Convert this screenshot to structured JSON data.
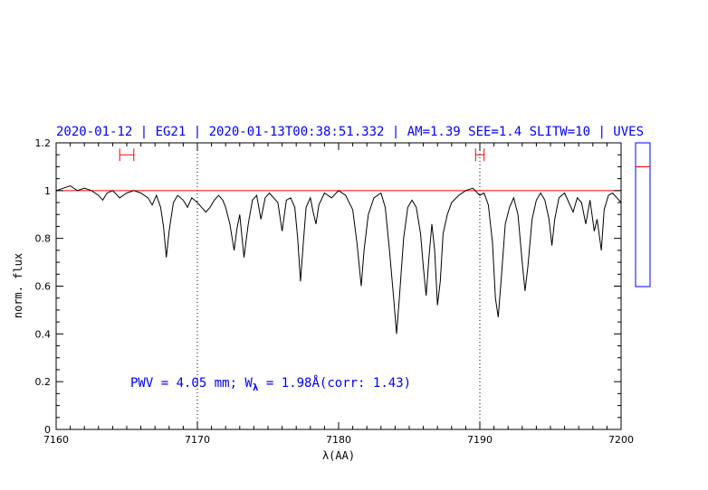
{
  "chart_data": {
    "type": "line",
    "title": "2020-01-12 | EG21 | 2020-01-13T00:38:51.332 | AM=1.39  SEE=1.4  SLITW=10 | UVES",
    "xlabel": "λ(AA)",
    "ylabel": "norm. flux",
    "xlim": [
      7160,
      7200
    ],
    "ylim": [
      0,
      1.2
    ],
    "xticks": [
      7160,
      7170,
      7180,
      7190,
      7200
    ],
    "xtick_labels": [
      "7160",
      "7170",
      "7180",
      "7190",
      "7200"
    ],
    "yticks": [
      0,
      0.2,
      0.4,
      0.6,
      0.8,
      1,
      1.2
    ],
    "ytick_labels": [
      "0",
      "0.2",
      "0.4",
      "0.6",
      "0.8",
      "1",
      "1.2"
    ],
    "reference_line": {
      "y": 1.0,
      "color": "#ff0000"
    },
    "vertical_markers": [
      7170,
      7190
    ],
    "red_intervals": [
      {
        "x0": 7164.5,
        "x1": 7165.5,
        "y": 1.15
      },
      {
        "x0": 7189.7,
        "x1": 7190.3,
        "y": 1.15
      }
    ],
    "annotation": {
      "pwv_text": "PWV  =  4.05  mm;  W",
      "subscript": "λ",
      "ew_text": "  =  1.98Å(corr: 1.43)"
    },
    "series": [
      {
        "color": "#000000",
        "points": [
          [
            7160.0,
            1.0
          ],
          [
            7160.5,
            1.01
          ],
          [
            7161.0,
            1.02
          ],
          [
            7161.5,
            1.0
          ],
          [
            7162.0,
            1.01
          ],
          [
            7162.5,
            1.0
          ],
          [
            7163.0,
            0.98
          ],
          [
            7163.3,
            0.96
          ],
          [
            7163.6,
            0.99
          ],
          [
            7164.0,
            1.0
          ],
          [
            7164.5,
            0.97
          ],
          [
            7165.0,
            0.99
          ],
          [
            7165.5,
            1.0
          ],
          [
            7166.0,
            0.99
          ],
          [
            7166.5,
            0.97
          ],
          [
            7166.8,
            0.94
          ],
          [
            7167.1,
            0.98
          ],
          [
            7167.4,
            0.93
          ],
          [
            7167.6,
            0.85
          ],
          [
            7167.8,
            0.72
          ],
          [
            7168.0,
            0.83
          ],
          [
            7168.3,
            0.95
          ],
          [
            7168.6,
            0.98
          ],
          [
            7169.0,
            0.96
          ],
          [
            7169.3,
            0.93
          ],
          [
            7169.6,
            0.97
          ],
          [
            7170.0,
            0.95
          ],
          [
            7170.3,
            0.93
          ],
          [
            7170.6,
            0.91
          ],
          [
            7170.9,
            0.93
          ],
          [
            7171.2,
            0.96
          ],
          [
            7171.5,
            0.98
          ],
          [
            7171.8,
            0.96
          ],
          [
            7172.0,
            0.93
          ],
          [
            7172.3,
            0.86
          ],
          [
            7172.6,
            0.75
          ],
          [
            7172.8,
            0.84
          ],
          [
            7173.0,
            0.9
          ],
          [
            7173.3,
            0.72
          ],
          [
            7173.6,
            0.86
          ],
          [
            7173.9,
            0.96
          ],
          [
            7174.2,
            0.98
          ],
          [
            7174.5,
            0.88
          ],
          [
            7174.8,
            0.97
          ],
          [
            7175.1,
            0.99
          ],
          [
            7175.4,
            0.97
          ],
          [
            7175.7,
            0.95
          ],
          [
            7176.0,
            0.83
          ],
          [
            7176.3,
            0.96
          ],
          [
            7176.6,
            0.97
          ],
          [
            7176.9,
            0.93
          ],
          [
            7177.1,
            0.8
          ],
          [
            7177.3,
            0.62
          ],
          [
            7177.5,
            0.78
          ],
          [
            7177.7,
            0.93
          ],
          [
            7178.0,
            0.97
          ],
          [
            7178.2,
            0.91
          ],
          [
            7178.4,
            0.86
          ],
          [
            7178.6,
            0.94
          ],
          [
            7179.0,
            0.99
          ],
          [
            7179.5,
            0.97
          ],
          [
            7180.0,
            1.0
          ],
          [
            7180.5,
            0.98
          ],
          [
            7181.0,
            0.92
          ],
          [
            7181.3,
            0.78
          ],
          [
            7181.6,
            0.6
          ],
          [
            7181.8,
            0.75
          ],
          [
            7182.1,
            0.9
          ],
          [
            7182.5,
            0.97
          ],
          [
            7183.0,
            0.99
          ],
          [
            7183.3,
            0.93
          ],
          [
            7183.6,
            0.75
          ],
          [
            7183.9,
            0.55
          ],
          [
            7184.1,
            0.4
          ],
          [
            7184.3,
            0.55
          ],
          [
            7184.6,
            0.8
          ],
          [
            7184.9,
            0.93
          ],
          [
            7185.2,
            0.96
          ],
          [
            7185.5,
            0.93
          ],
          [
            7185.8,
            0.82
          ],
          [
            7186.0,
            0.68
          ],
          [
            7186.2,
            0.56
          ],
          [
            7186.4,
            0.72
          ],
          [
            7186.6,
            0.86
          ],
          [
            7186.8,
            0.75
          ],
          [
            7187.0,
            0.52
          ],
          [
            7187.2,
            0.62
          ],
          [
            7187.4,
            0.82
          ],
          [
            7187.7,
            0.9
          ],
          [
            7188.0,
            0.95
          ],
          [
            7188.5,
            0.98
          ],
          [
            7189.0,
            1.0
          ],
          [
            7189.5,
            1.01
          ],
          [
            7190.0,
            0.98
          ],
          [
            7190.3,
            0.99
          ],
          [
            7190.6,
            0.94
          ],
          [
            7190.9,
            0.78
          ],
          [
            7191.1,
            0.55
          ],
          [
            7191.3,
            0.47
          ],
          [
            7191.5,
            0.62
          ],
          [
            7191.8,
            0.86
          ],
          [
            7192.1,
            0.93
          ],
          [
            7192.4,
            0.97
          ],
          [
            7192.7,
            0.9
          ],
          [
            7193.0,
            0.7
          ],
          [
            7193.2,
            0.58
          ],
          [
            7193.4,
            0.68
          ],
          [
            7193.7,
            0.88
          ],
          [
            7194.0,
            0.96
          ],
          [
            7194.3,
            0.99
          ],
          [
            7194.6,
            0.96
          ],
          [
            7194.9,
            0.88
          ],
          [
            7195.1,
            0.77
          ],
          [
            7195.3,
            0.88
          ],
          [
            7195.6,
            0.97
          ],
          [
            7196.0,
            0.99
          ],
          [
            7196.3,
            0.95
          ],
          [
            7196.6,
            0.91
          ],
          [
            7196.9,
            0.97
          ],
          [
            7197.2,
            0.95
          ],
          [
            7197.5,
            0.86
          ],
          [
            7197.8,
            0.96
          ],
          [
            7198.1,
            0.83
          ],
          [
            7198.3,
            0.88
          ],
          [
            7198.6,
            0.75
          ],
          [
            7198.8,
            0.92
          ],
          [
            7199.1,
            0.98
          ],
          [
            7199.4,
            0.99
          ],
          [
            7199.7,
            0.97
          ],
          [
            7200.0,
            0.95
          ]
        ]
      }
    ]
  },
  "side_panel": {
    "ylim": [
      0,
      1.2
    ],
    "line_y": 1.0,
    "box_color": "#0000ff",
    "line_color": "#ff0000"
  }
}
